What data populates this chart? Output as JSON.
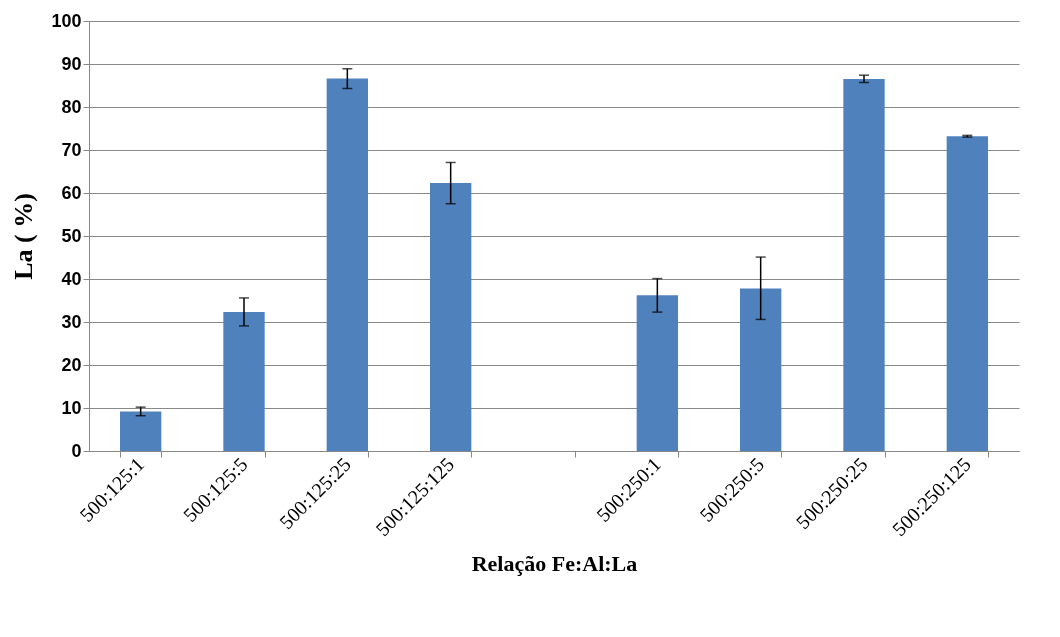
{
  "chart_data": {
    "type": "bar",
    "xlabel": "Relação Fe:Al:La",
    "ylabel": "La ( %)",
    "categories": [
      "500:125:1",
      "500:125:5",
      "500:125:25",
      "500:125:125",
      null,
      "500:250:1",
      "500:250:5",
      "500:250:25",
      "500:250:125"
    ],
    "values": [
      9.2,
      32.3,
      86.6,
      62.3,
      null,
      36.2,
      37.8,
      86.5,
      73.2
    ],
    "errors": [
      [
        8.2,
        10.2
      ],
      [
        29.1,
        35.6
      ],
      [
        84.3,
        88.9
      ],
      [
        57.5,
        67.1
      ],
      null,
      [
        32.3,
        40.1
      ],
      [
        30.6,
        45.1
      ],
      [
        85.7,
        87.4
      ],
      [
        73.0,
        73.4
      ]
    ],
    "color": "#4f81bd",
    "ylim": [
      0,
      100
    ],
    "yticks": [
      0,
      10,
      20,
      30,
      40,
      50,
      60,
      70,
      80,
      90,
      100
    ],
    "grid": "y"
  }
}
